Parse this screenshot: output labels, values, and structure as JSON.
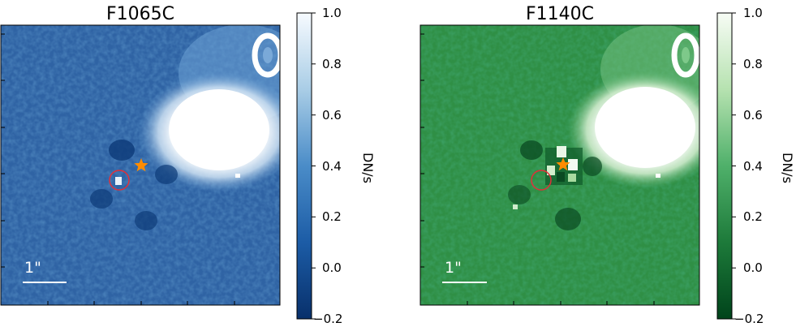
{
  "chart_data": [
    {
      "type": "heatmap",
      "title": "F1065C",
      "colormap": "Blues_r",
      "colorbar": {
        "label": "DN/s",
        "range": [
          -0.2,
          1.0
        ],
        "ticks": [
          -0.2,
          0.0,
          0.2,
          0.4,
          0.6,
          0.8,
          1.0
        ],
        "tick_labels": [
          "−0.2",
          "0.0",
          "0.2",
          "0.4",
          "0.6",
          "0.8",
          "1.0"
        ]
      },
      "scale_bar_label": "1\"",
      "markers": [
        "orange star",
        "red circle"
      ]
    },
    {
      "type": "heatmap",
      "title": "F1140C",
      "colormap": "Greens_r",
      "colorbar": {
        "label": "DN/s",
        "range": [
          -0.2,
          1.0
        ],
        "ticks": [
          -0.2,
          0.0,
          0.2,
          0.4,
          0.6,
          0.8,
          1.0
        ],
        "tick_labels": [
          "−0.2",
          "0.0",
          "0.2",
          "0.4",
          "0.6",
          "0.8",
          "1.0"
        ]
      },
      "scale_bar_label": "1\"",
      "markers": [
        "orange star",
        "red circle"
      ]
    }
  ],
  "colors": {
    "blue_low": "#08306b",
    "blue_mid": "#4a7fbf",
    "blue_high": "#f7fbff",
    "green_low": "#00441b",
    "green_mid": "#3a9a55",
    "green_high": "#f7fcf5",
    "star": "#ff8c00",
    "circle": "#e0303a"
  }
}
